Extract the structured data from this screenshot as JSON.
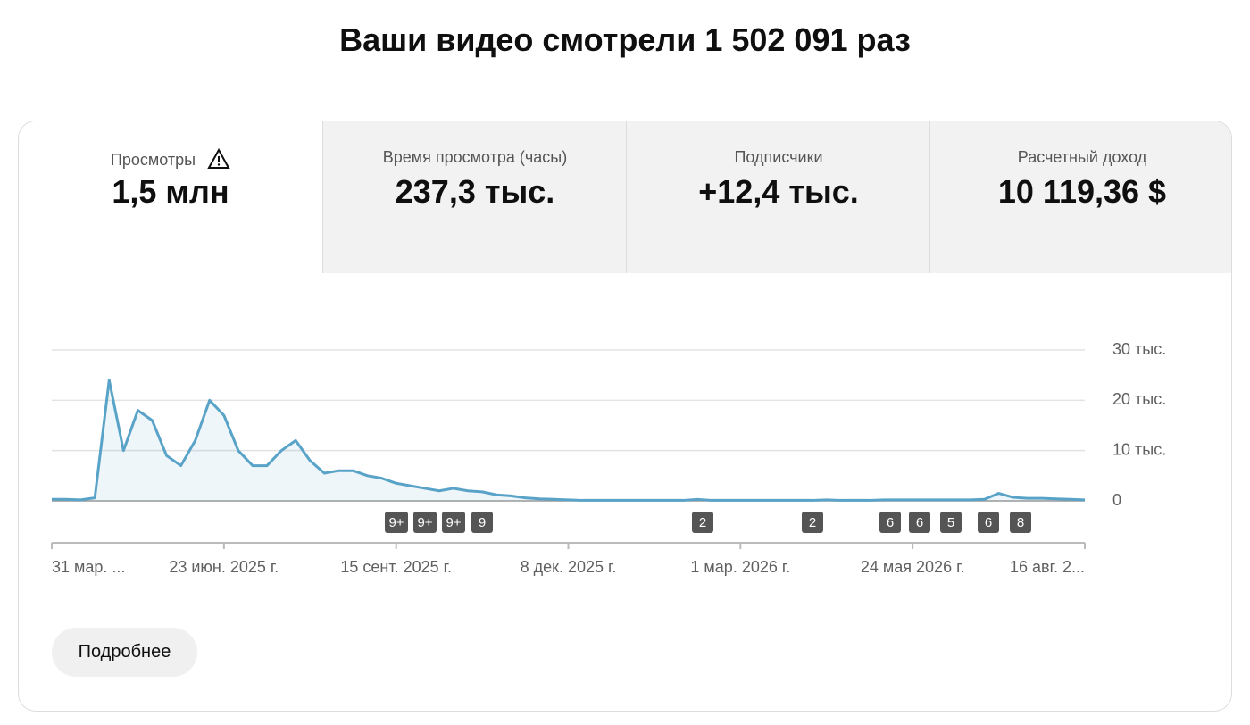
{
  "header": {
    "title": "Ваши видео смотрели 1 502 091 раз"
  },
  "tabs": [
    {
      "label": "Просмотры",
      "value": "1,5 млн"
    },
    {
      "label": "Время просмотра (часы)",
      "value": "237,3 тыс."
    },
    {
      "label": "Подписчики",
      "value": "+12,4 тыс."
    },
    {
      "label": "Расчетный доход",
      "value": "10 119,36 $"
    }
  ],
  "chart_data": {
    "type": "line",
    "color": "#5aa3c8",
    "categories": [
      "31 мар. ...",
      null,
      null,
      null,
      null,
      null,
      null,
      null,
      null,
      null,
      null,
      null,
      "23 июн. 2025 г.",
      null,
      null,
      null,
      null,
      null,
      null,
      null,
      null,
      null,
      null,
      null,
      "15 сент. 2025 г.",
      null,
      null,
      null,
      null,
      null,
      null,
      null,
      null,
      null,
      null,
      null,
      "8 дек. 2025 г.",
      null,
      null,
      null,
      null,
      null,
      null,
      null,
      null,
      null,
      null,
      null,
      "1 мар. 2026 г.",
      null,
      null,
      null,
      null,
      null,
      null,
      null,
      null,
      null,
      null,
      null,
      "24 мая 2026 г.",
      null,
      null,
      null,
      null,
      null,
      null,
      null,
      null,
      null,
      null,
      null,
      "16 авг. 2..."
    ],
    "values": [
      300,
      300,
      200,
      600,
      24000,
      10000,
      18000,
      16000,
      9000,
      7000,
      12000,
      20000,
      17000,
      10000,
      7000,
      7000,
      10000,
      12000,
      8000,
      5500,
      6000,
      6000,
      5000,
      4500,
      3500,
      3000,
      2500,
      2000,
      2500,
      2000,
      1800,
      1200,
      1000,
      600,
      400,
      300,
      200,
      100,
      100,
      100,
      100,
      100,
      100,
      100,
      100,
      300,
      100,
      100,
      100,
      100,
      100,
      100,
      100,
      100,
      200,
      100,
      100,
      100,
      200,
      200,
      200,
      200,
      200,
      200,
      200,
      300,
      1500,
      700,
      500,
      500,
      400,
      300,
      200
    ],
    "ylim": [
      0,
      30000
    ],
    "yticks": [
      0,
      {
        "value": 10000,
        "label": "10 тыс."
      },
      {
        "value": 20000,
        "label": "20 тыс."
      },
      {
        "value": 30000,
        "label": "30 тыс."
      }
    ],
    "grid": true,
    "annotations": [
      "9+",
      "9+",
      "9+",
      "9",
      "2",
      "2",
      "6",
      "6",
      "5",
      "6",
      "8"
    ]
  },
  "button": {
    "label": "Подробнее"
  }
}
